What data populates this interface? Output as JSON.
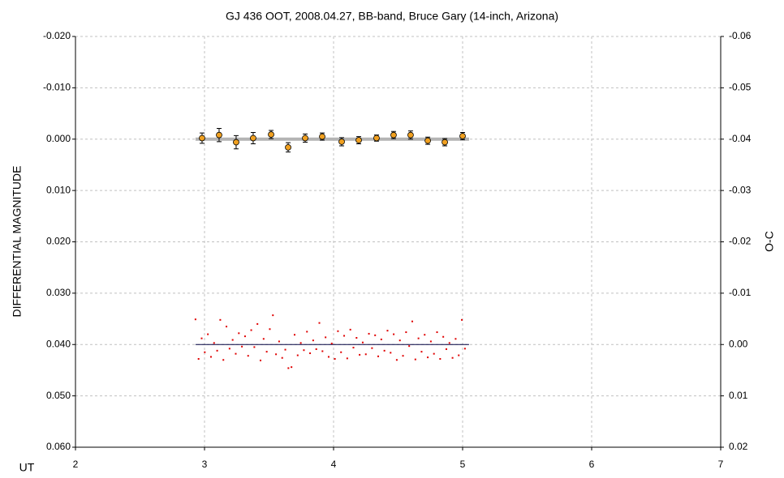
{
  "chart_data": {
    "type": "scatter",
    "title": "GJ 436 OOT, 2008.04.27, BB-band, Bruce Gary (14-inch, Arizona)",
    "x_label": "UT",
    "y_label": "DIFFERENTIAL MAGNITUDE",
    "y2_label": "O-C",
    "xlim": [
      2,
      7
    ],
    "xticks": [
      2,
      3,
      4,
      5,
      6,
      7
    ],
    "ylim": [
      -0.02,
      0.06
    ],
    "y_reversed": true,
    "yticks": [
      {
        "value": -0.02,
        "label": "-0.020"
      },
      {
        "value": -0.01,
        "label": "-0.010"
      },
      {
        "value": 0,
        "label": "0.000"
      },
      {
        "value": 0.01,
        "label": "0.010"
      },
      {
        "value": 0.02,
        "label": "0.020"
      },
      {
        "value": 0.03,
        "label": "0.030"
      },
      {
        "value": 0.04,
        "label": "0.040"
      },
      {
        "value": 0.05,
        "label": "0.050"
      },
      {
        "value": 0.06,
        "label": "0.060"
      }
    ],
    "y2lim": [
      -0.06,
      0.02
    ],
    "y2ticks": [
      {
        "value": -0.06,
        "label": "-0.06"
      },
      {
        "value": -0.05,
        "label": "-0.05"
      },
      {
        "value": -0.04,
        "label": "-0.04"
      },
      {
        "value": -0.03,
        "label": "-0.03"
      },
      {
        "value": -0.02,
        "label": "-0.02"
      },
      {
        "value": -0.01,
        "label": "-0.01"
      },
      {
        "value": 0,
        "label": "0.00"
      },
      {
        "value": 0.01,
        "label": "0.01"
      },
      {
        "value": 0.02,
        "label": "0.02"
      }
    ],
    "grid": true,
    "series": [
      {
        "marker": "line",
        "color": "#b4b4b4",
        "x": [
          2.93,
          5.05
        ],
        "values": [
          0,
          0
        ]
      },
      {
        "marker": "circle",
        "color": "#f0a020",
        "x": [
          2.981,
          3.113,
          3.245,
          3.377,
          3.516,
          3.648,
          3.78,
          3.912,
          4.063,
          4.195,
          4.333,
          4.465,
          4.597,
          4.73,
          4.862,
          5.0
        ],
        "values": [
          -0.0002,
          -0.0008,
          0.0006,
          -0.0002,
          -0.0009,
          0.0016,
          -0.0002,
          -0.0005,
          0.0005,
          0.0002,
          -0.0002,
          -0.0008,
          -0.0008,
          0.0003,
          0.0006,
          -0.0006
        ],
        "errors": [
          0.001,
          0.0013,
          0.0013,
          0.0011,
          0.0008,
          0.0009,
          0.0008,
          0.0007,
          0.0008,
          0.0007,
          0.0006,
          0.0007,
          0.0008,
          0.0007,
          0.0007,
          0.0007
        ]
      },
      {
        "marker": "line",
        "color": "#000040",
        "axis": "y2",
        "x": [
          2.93,
          5.05
        ],
        "values": [
          0,
          0
        ]
      },
      {
        "marker": "dot",
        "color": "#e00000",
        "axis": "y2",
        "x": [
          2.93,
          2.954,
          2.978,
          3.002,
          3.026,
          3.05,
          3.074,
          3.098,
          3.122,
          3.146,
          3.17,
          3.194,
          3.218,
          3.242,
          3.266,
          3.29,
          3.314,
          3.338,
          3.362,
          3.386,
          3.41,
          3.434,
          3.458,
          3.482,
          3.506,
          3.53,
          3.554,
          3.578,
          3.602,
          3.626,
          3.65,
          3.674,
          3.698,
          3.722,
          3.746,
          3.77,
          3.794,
          3.818,
          3.842,
          3.866,
          3.89,
          3.914,
          3.938,
          3.962,
          3.986,
          4.01,
          4.034,
          4.058,
          4.082,
          4.106,
          4.13,
          4.154,
          4.178,
          4.202,
          4.226,
          4.25,
          4.274,
          4.298,
          4.322,
          4.346,
          4.37,
          4.394,
          4.418,
          4.442,
          4.466,
          4.49,
          4.514,
          4.538,
          4.562,
          4.586,
          4.61,
          4.634,
          4.658,
          4.682,
          4.706,
          4.73,
          4.754,
          4.778,
          4.802,
          4.826,
          4.85,
          4.874,
          4.898,
          4.922,
          4.946,
          4.97,
          4.994,
          5.018
        ],
        "values": [
          -0.0049,
          0.0028,
          -0.0012,
          0.0015,
          -0.002,
          0.0024,
          -0.0003,
          0.0012,
          -0.0048,
          0.003,
          -0.0035,
          0.0008,
          -0.0009,
          0.0018,
          -0.0022,
          0.0004,
          -0.0016,
          0.0022,
          -0.0028,
          0.0005,
          -0.004,
          0.0031,
          -0.0011,
          0.0014,
          -0.003,
          -0.0057,
          0.0019,
          -0.0006,
          0.0026,
          0.001,
          0.0046,
          0.0044,
          -0.0019,
          0.0021,
          -0.0003,
          0.0011,
          -0.0025,
          0.0017,
          -0.0008,
          0.0009,
          -0.0042,
          0.0013,
          -0.0014,
          0.0024,
          -0.0002,
          0.0028,
          -0.0026,
          0.0015,
          -0.0017,
          0.0027,
          -0.0029,
          0.0006,
          -0.0013,
          0.002,
          -0.0004,
          0.0019,
          -0.0021,
          0.0007,
          -0.0018,
          0.0023,
          -0.001,
          0.0012,
          -0.0027,
          0.0016,
          -0.002,
          0.003,
          -0.0008,
          0.0022,
          -0.0024,
          0.0003,
          -0.0045,
          0.0029,
          -0.0012,
          0.0014,
          -0.0019,
          0.0025,
          -0.0006,
          0.0018,
          -0.0024,
          0.0028,
          -0.0015,
          0.0009,
          -0.0003,
          0.0026,
          -0.0011,
          0.0021,
          -0.0048,
          0.0008
        ]
      }
    ]
  }
}
